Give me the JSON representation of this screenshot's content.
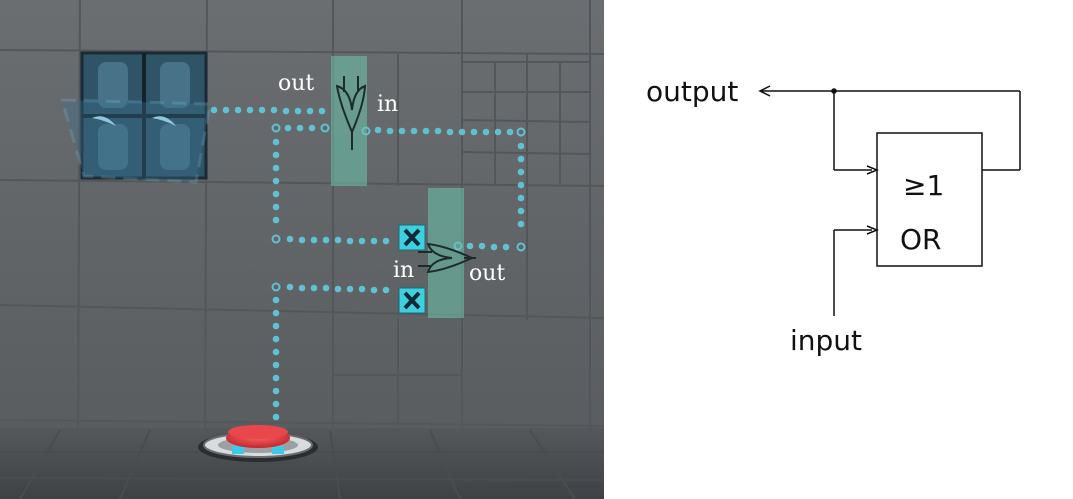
{
  "scene": {
    "gate_top": {
      "out_label": "out",
      "in_label": "in"
    },
    "gate_bottom": {
      "in_label": "in",
      "out_label": "out"
    }
  },
  "schematic": {
    "output_label": "output",
    "input_label": "input",
    "gate_symbol": "≥1",
    "gate_name": "OR"
  }
}
